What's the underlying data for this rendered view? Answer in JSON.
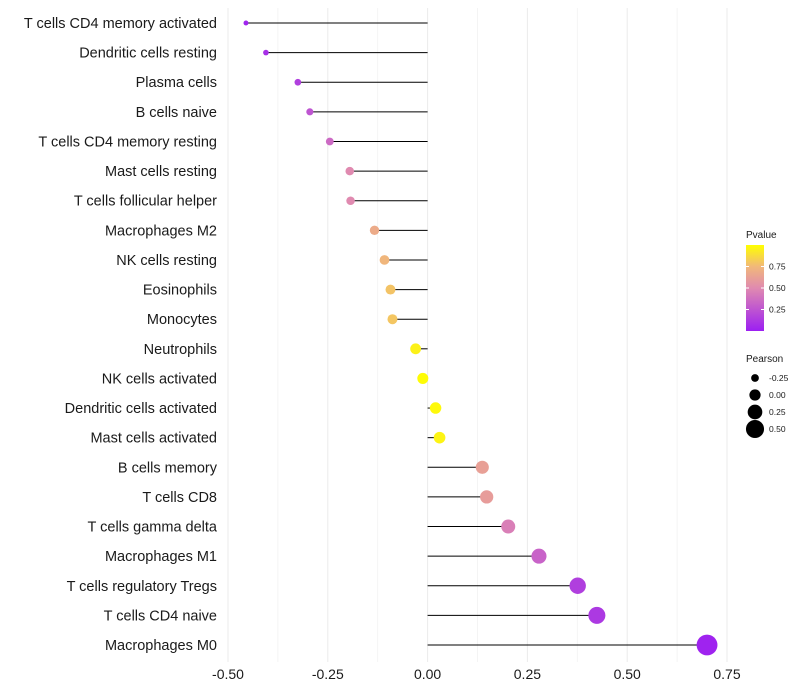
{
  "chart_data": {
    "type": "lollipop",
    "xlim": [
      -0.5,
      0.75
    ],
    "x_ticks": [
      -0.5,
      -0.25,
      0.0,
      0.25,
      0.5,
      0.75
    ],
    "x_tick_labels": [
      "-0.50",
      "-0.25",
      "0.00",
      "0.25",
      "0.50",
      "0.75"
    ],
    "categories": [
      "T cells CD4 memory activated",
      "Dendritic cells resting",
      "Plasma cells",
      "B cells naive",
      "T cells CD4 memory resting",
      "Mast cells resting",
      "T cells follicular helper",
      "Macrophages M2",
      "NK cells resting",
      "Eosinophils",
      "Monocytes",
      "Neutrophils",
      "NK cells activated",
      "Dendritic cells activated",
      "Mast cells activated",
      "B cells memory",
      "T cells CD8",
      "T cells gamma delta",
      "Macrophages M1",
      "T cells regulatory  Tregs",
      "T cells CD4 naive",
      "Macrophages M0"
    ],
    "pearson": [
      -0.455,
      -0.405,
      -0.325,
      -0.295,
      -0.245,
      -0.195,
      -0.193,
      -0.133,
      -0.108,
      -0.093,
      -0.088,
      -0.03,
      -0.012,
      0.02,
      0.03,
      0.137,
      0.148,
      0.202,
      0.279,
      0.376,
      0.424,
      0.7
    ],
    "pvalue": [
      0.03,
      0.08,
      0.15,
      0.25,
      0.35,
      0.5,
      0.5,
      0.68,
      0.74,
      0.79,
      0.8,
      0.95,
      0.99,
      0.98,
      0.96,
      0.62,
      0.6,
      0.45,
      0.32,
      0.15,
      0.12,
      0.02
    ],
    "legend": {
      "pvalue_title": "Pvalue",
      "pvalue_ticks": [
        0.25,
        0.5,
        0.75
      ],
      "pvalue_tick_labels": [
        "0.25",
        "0.50",
        "0.75"
      ],
      "pvalue_range": [
        0.0,
        1.0
      ],
      "pearson_title": "Pearson",
      "pearson_ticks": [
        -0.25,
        0.0,
        0.25,
        0.5
      ],
      "pearson_tick_labels": [
        "-0.25",
        "0.00",
        "0.25",
        "0.50"
      ]
    },
    "colors": {
      "low": "#9c1ff2",
      "mid": "#e8a080",
      "high": "#ffff00",
      "segment": "#000000",
      "grid": "#ebebeb"
    }
  }
}
